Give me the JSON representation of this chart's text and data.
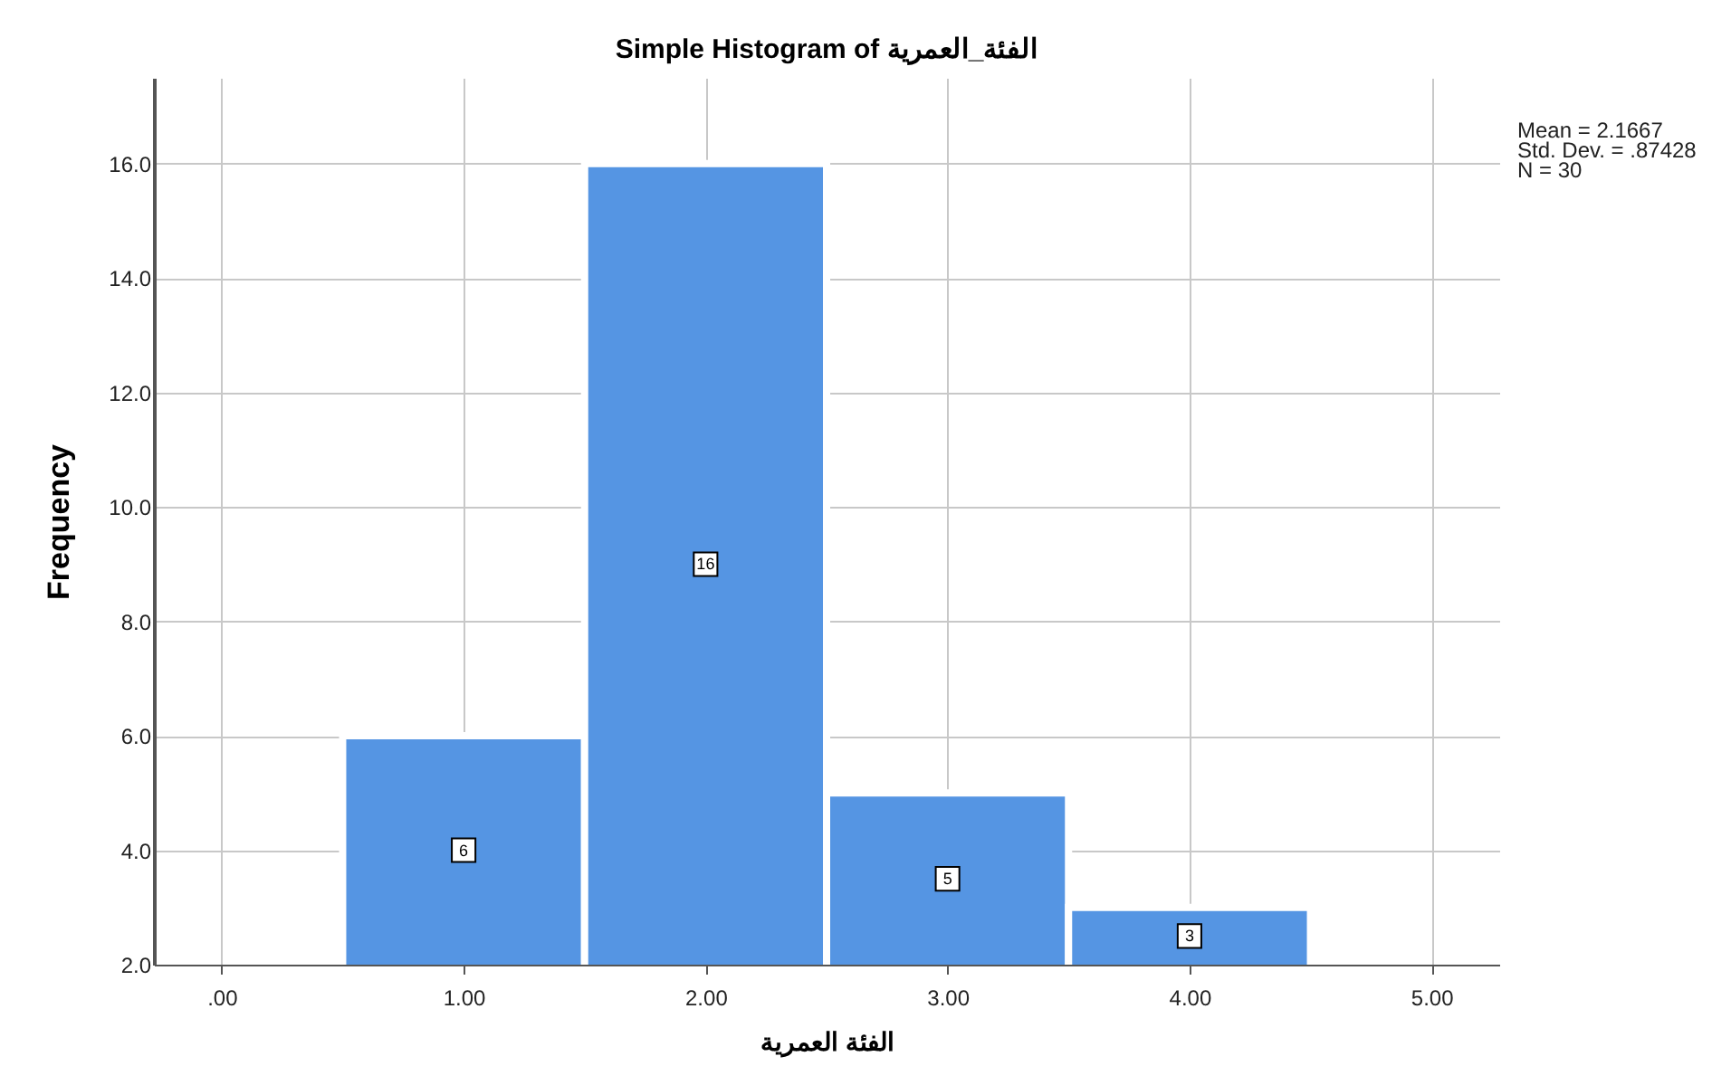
{
  "chart_data": {
    "type": "histogram",
    "title": "Simple Histogram of الفئة_العمرية",
    "xlabel": "الفئة  العمرية",
    "ylabel": "Frequency",
    "bins": [
      0.5,
      1.5,
      2.5,
      3.5,
      4.5
    ],
    "values": [
      6,
      16,
      5,
      3
    ],
    "color": "#5595e3",
    "data_labels": true,
    "xlim": [
      -0.28,
      5.28
    ],
    "xticks": [
      {
        "value": 0,
        "label": ".00"
      },
      {
        "value": 1,
        "label": "1.00"
      },
      {
        "value": 2,
        "label": "2.00"
      },
      {
        "value": 3,
        "label": "3.00"
      },
      {
        "value": 4,
        "label": "4.00"
      },
      {
        "value": 5,
        "label": "5.00"
      }
    ],
    "ylim": [
      2,
      17.5
    ],
    "yticks": [
      {
        "value": 2,
        "label": "2.0"
      },
      {
        "value": 4,
        "label": "4.0"
      },
      {
        "value": 6,
        "label": "6.0"
      },
      {
        "value": 8,
        "label": "8.0"
      },
      {
        "value": 10,
        "label": "10.0"
      },
      {
        "value": 12,
        "label": "12.0"
      },
      {
        "value": 14,
        "label": "14.0"
      },
      {
        "value": 16,
        "label": "16.0"
      }
    ],
    "grid": true,
    "annotations": [
      "Mean = 2.1667",
      "Std. Dev. = .87428",
      "N = 30"
    ]
  }
}
